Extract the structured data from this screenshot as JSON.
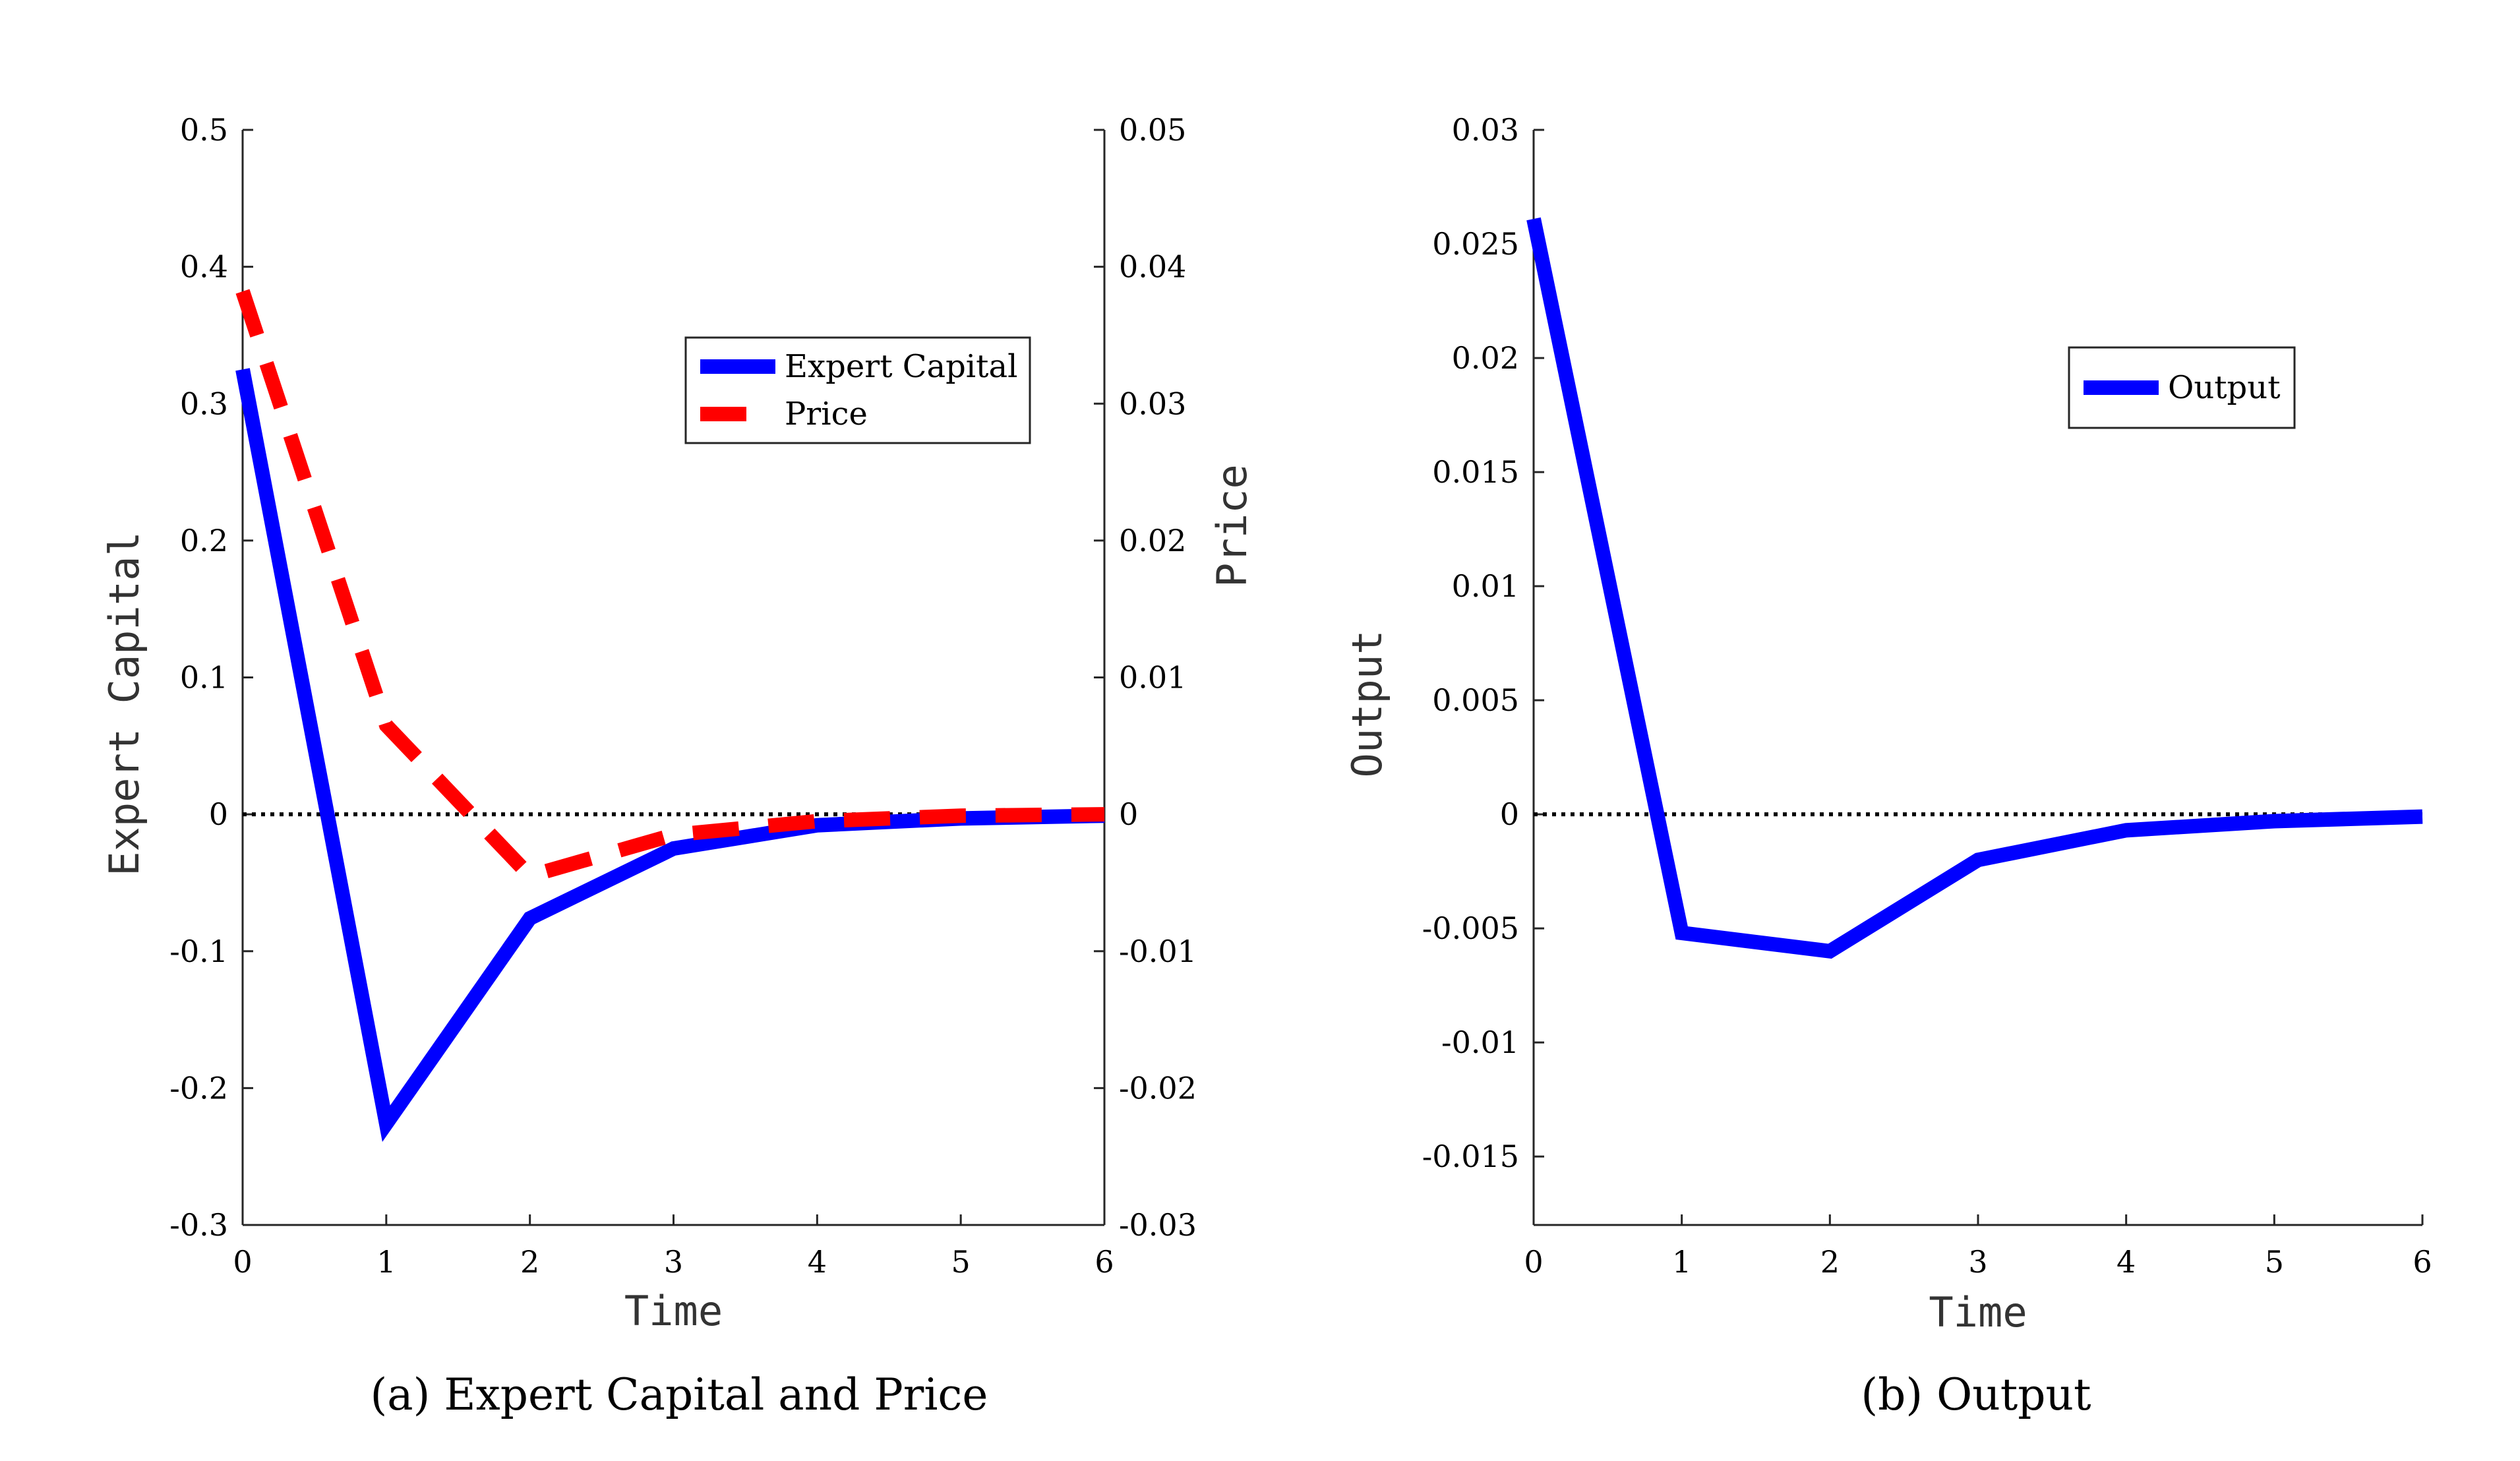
{
  "colors": {
    "expert_capital": "#0000ff",
    "price": "#ff0000",
    "output": "#0000ff",
    "zero_line": "#000000"
  },
  "chart_data": [
    {
      "type": "line",
      "caption": "(a) Expert Capital and Price",
      "xlabel": "Time",
      "ylabel": "Expert Capital",
      "ylabel_right": "Price",
      "xlim": [
        0,
        6
      ],
      "ylim": [
        -0.3,
        0.5
      ],
      "ylim_right": [
        -0.03,
        0.05
      ],
      "x_ticks": [
        "0",
        "1",
        "2",
        "3",
        "4",
        "5",
        "6"
      ],
      "y_ticks": [
        "-0.3",
        "-0.2",
        "-0.1",
        "0",
        "0.1",
        "0.2",
        "0.3",
        "0.4",
        "0.5"
      ],
      "y_ticks_right": [
        "-0.03",
        "-0.02",
        "-0.01",
        "0",
        "0.01",
        "0.02",
        "0.03",
        "0.04",
        "0.05"
      ],
      "legend_position": "top-right",
      "zero_reference_line": true,
      "series": [
        {
          "name": "Expert Capital",
          "axis": "left",
          "style": "solid",
          "x": [
            0,
            1,
            2,
            3,
            4,
            5,
            6
          ],
          "values": [
            0.325,
            -0.226,
            -0.076,
            -0.025,
            -0.008,
            -0.003,
            -0.001
          ]
        },
        {
          "name": "Price",
          "axis": "right",
          "style": "dashed",
          "x": [
            0,
            1,
            2,
            3,
            4,
            5,
            6
          ],
          "values": [
            0.0382,
            0.0065,
            -0.0045,
            -0.0015,
            -0.0005,
            -0.0001,
            0.0
          ]
        }
      ]
    },
    {
      "type": "line",
      "caption": "(b) Output",
      "xlabel": "Time",
      "ylabel": "Output",
      "xlim": [
        0,
        6
      ],
      "ylim": [
        -0.018,
        0.03
      ],
      "x_ticks": [
        "0",
        "1",
        "2",
        "3",
        "4",
        "5",
        "6"
      ],
      "y_ticks": [
        "-0.015",
        "-0.01",
        "-0.005",
        "0",
        "0.005",
        "0.01",
        "0.015",
        "0.02",
        "0.025",
        "0.03"
      ],
      "legend_position": "top-right",
      "zero_reference_line": true,
      "series": [
        {
          "name": "Output",
          "axis": "left",
          "style": "solid",
          "x": [
            0,
            1,
            2,
            3,
            4,
            5,
            6
          ],
          "values": [
            0.0261,
            -0.0052,
            -0.006,
            -0.002,
            -0.0007,
            -0.0003,
            -0.0001
          ]
        }
      ]
    }
  ]
}
